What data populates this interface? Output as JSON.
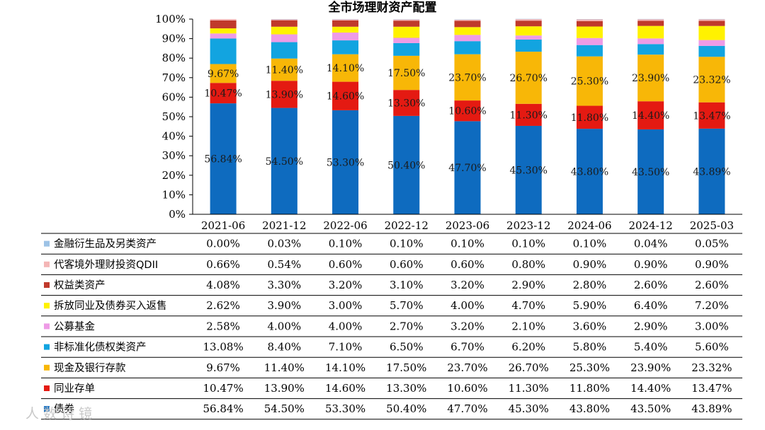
{
  "chart_data": {
    "type": "bar",
    "stacked": true,
    "title": "全市场理财资产配置",
    "categories": [
      "2021-06",
      "2021-12",
      "2022-06",
      "2022-12",
      "2023-06",
      "2023-12",
      "2024-06",
      "2024-12",
      "2025-03"
    ],
    "y_ticks": [
      "0%",
      "10%",
      "20%",
      "30%",
      "40%",
      "50%",
      "60%",
      "70%",
      "80%",
      "90%",
      "100%"
    ],
    "ylim": [
      0,
      100
    ],
    "series": [
      {
        "name": "债券",
        "color": "#0E6BBF",
        "values": [
          56.84,
          54.5,
          53.3,
          50.4,
          47.7,
          45.3,
          43.8,
          43.5,
          43.89
        ],
        "labels": [
          "56.84%",
          "54.50%",
          "53.30%",
          "50.40%",
          "47.70%",
          "45.30%",
          "43.80%",
          "43.50%",
          "43.89%"
        ]
      },
      {
        "name": "同业存单",
        "color": "#E41A12",
        "values": [
          10.47,
          13.9,
          14.6,
          13.3,
          10.6,
          11.3,
          11.8,
          14.4,
          13.47
        ],
        "labels": [
          "10.47%",
          "13.90%",
          "14.60%",
          "13.30%",
          "10.60%",
          "11.30%",
          "11.80%",
          "14.40%",
          "13.47%"
        ]
      },
      {
        "name": "现金及银行存款",
        "color": "#F8B707",
        "values": [
          9.67,
          11.4,
          14.1,
          17.5,
          23.7,
          26.7,
          25.3,
          23.9,
          23.32
        ],
        "labels": [
          "9.67%",
          "11.40%",
          "14.10%",
          "17.50%",
          "23.70%",
          "26.70%",
          "25.30%",
          "23.90%",
          "23.32%"
        ]
      },
      {
        "name": "非标准化债权类资产",
        "color": "#12A4E0",
        "values": [
          13.08,
          8.4,
          7.1,
          6.5,
          6.7,
          6.2,
          5.8,
          5.4,
          5.6
        ],
        "labels": [
          "13.08%",
          "8.40%",
          "7.10%",
          "6.50%",
          "6.70%",
          "6.20%",
          "5.80%",
          "5.40%",
          "5.60%"
        ]
      },
      {
        "name": "公募基金",
        "color": "#EE9BE6",
        "values": [
          2.58,
          4.0,
          4.0,
          2.7,
          3.2,
          2.1,
          3.6,
          2.9,
          3.0
        ],
        "labels": [
          "2.58%",
          "4.00%",
          "4.00%",
          "2.70%",
          "3.20%",
          "2.10%",
          "3.60%",
          "2.90%",
          "3.00%"
        ]
      },
      {
        "name": "拆放同业及债券买入返售",
        "color": "#FFF200",
        "values": [
          2.62,
          3.9,
          3.0,
          5.7,
          4.0,
          4.7,
          5.9,
          6.4,
          7.2
        ],
        "labels": [
          "2.62%",
          "3.90%",
          "3.00%",
          "5.70%",
          "4.00%",
          "4.70%",
          "5.90%",
          "6.40%",
          "7.20%"
        ]
      },
      {
        "name": "权益类资产",
        "color": "#C0392B",
        "values": [
          4.08,
          3.3,
          3.2,
          3.1,
          3.2,
          2.9,
          2.8,
          2.6,
          2.6
        ],
        "labels": [
          "4.08%",
          "3.30%",
          "3.20%",
          "3.10%",
          "3.20%",
          "2.90%",
          "2.80%",
          "2.60%",
          "2.60%"
        ]
      },
      {
        "name": "代客境外理财投资QDII",
        "color": "#F4B6B6",
        "values": [
          0.66,
          0.54,
          0.6,
          0.6,
          0.6,
          0.8,
          0.9,
          0.9,
          0.9
        ],
        "labels": [
          "0.66%",
          "0.54%",
          "0.60%",
          "0.60%",
          "0.60%",
          "0.80%",
          "0.90%",
          "0.90%",
          "0.90%"
        ]
      },
      {
        "name": "金融衍生品及另类资产",
        "color": "#9DC3E6",
        "values": [
          0.0,
          0.03,
          0.1,
          0.1,
          0.1,
          0.1,
          0.1,
          0.04,
          0.05
        ],
        "labels": [
          "0.00%",
          "0.03%",
          "0.10%",
          "0.10%",
          "0.10%",
          "0.10%",
          "0.10%",
          "0.04%",
          "0.05%"
        ]
      }
    ],
    "labeled_series": [
      "债券",
      "同业存单",
      "现金及银行存款"
    ],
    "table_row_order": [
      "金融衍生品及另类资产",
      "代客境外理财投资QDII",
      "权益类资产",
      "拆放同业及债券买入返售",
      "公募基金",
      "非标准化债权类资产",
      "现金及银行存款",
      "同业存单",
      "债券"
    ],
    "grid": false,
    "legend": "data table below chart"
  },
  "watermark": "人 数 诗 镜"
}
